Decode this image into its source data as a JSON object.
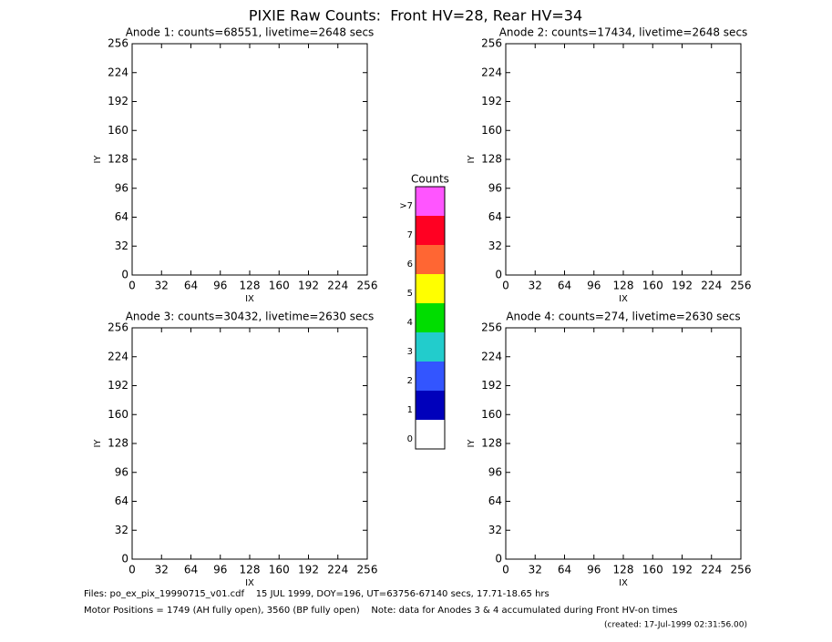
{
  "title": "PIXIE Raw Counts:  Front HV=28, Rear HV=34",
  "chart_data": [
    {
      "type": "heatmap",
      "title": "Anode 1: counts=68551, livetime=2648 secs",
      "x_label": "IX",
      "y_label": "IY",
      "xlim": [
        0,
        256
      ],
      "ylim": [
        0,
        256
      ],
      "xticks": [
        0,
        32,
        64,
        96,
        128,
        160,
        192,
        224,
        256
      ],
      "yticks": [
        0,
        32,
        64,
        96,
        128,
        160,
        192,
        224,
        256
      ]
    },
    {
      "type": "heatmap",
      "title": "Anode 2: counts=17434, livetime=2648 secs",
      "x_label": "IX",
      "y_label": "IY",
      "xlim": [
        0,
        256
      ],
      "ylim": [
        0,
        256
      ],
      "xticks": [
        0,
        32,
        64,
        96,
        128,
        160,
        192,
        224,
        256
      ],
      "yticks": [
        0,
        32,
        64,
        96,
        128,
        160,
        192,
        224,
        256
      ]
    },
    {
      "type": "heatmap",
      "title": "Anode 3: counts=30432, livetime=2630 secs",
      "x_label": "IX",
      "y_label": "IY",
      "xlim": [
        0,
        256
      ],
      "ylim": [
        0,
        256
      ],
      "xticks": [
        0,
        32,
        64,
        96,
        128,
        160,
        192,
        224,
        256
      ],
      "yticks": [
        0,
        32,
        64,
        96,
        128,
        160,
        192,
        224,
        256
      ]
    },
    {
      "type": "heatmap",
      "title": "Anode 4: counts=274, livetime=2630 secs",
      "x_label": "IX",
      "y_label": "IY",
      "xlim": [
        0,
        256
      ],
      "ylim": [
        0,
        256
      ],
      "xticks": [
        0,
        32,
        64,
        96,
        128,
        160,
        192,
        224,
        256
      ],
      "yticks": [
        0,
        32,
        64,
        96,
        128,
        160,
        192,
        224,
        256
      ]
    }
  ],
  "colorbar": {
    "title": "Counts",
    "levels": [
      {
        "label": ">7",
        "color": "#ff55ff"
      },
      {
        "label": "7",
        "color": "#ff0022"
      },
      {
        "label": "6",
        "color": "#ff6633"
      },
      {
        "label": "5",
        "color": "#ffff00"
      },
      {
        "label": "4",
        "color": "#00dd00"
      },
      {
        "label": "3",
        "color": "#22cccc"
      },
      {
        "label": "2",
        "color": "#3355ff"
      },
      {
        "label": "1",
        "color": "#0000bb"
      },
      {
        "label": "0",
        "color": "#ffffff"
      }
    ]
  },
  "footer": {
    "files": "Files: po_ex_pix_19990715_v01.cdf    15 JUL 1999, DOY=196, UT=63756-67140 secs, 17.71-18.65 hrs",
    "motor": "Motor Positions = 1749 (AH fully open), 3560 (BP fully open)    Note: data for Anodes 3 & 4 accumulated during Front HV-on times",
    "created": "(created: 17-Jul-1999 02:31:56.00)"
  }
}
